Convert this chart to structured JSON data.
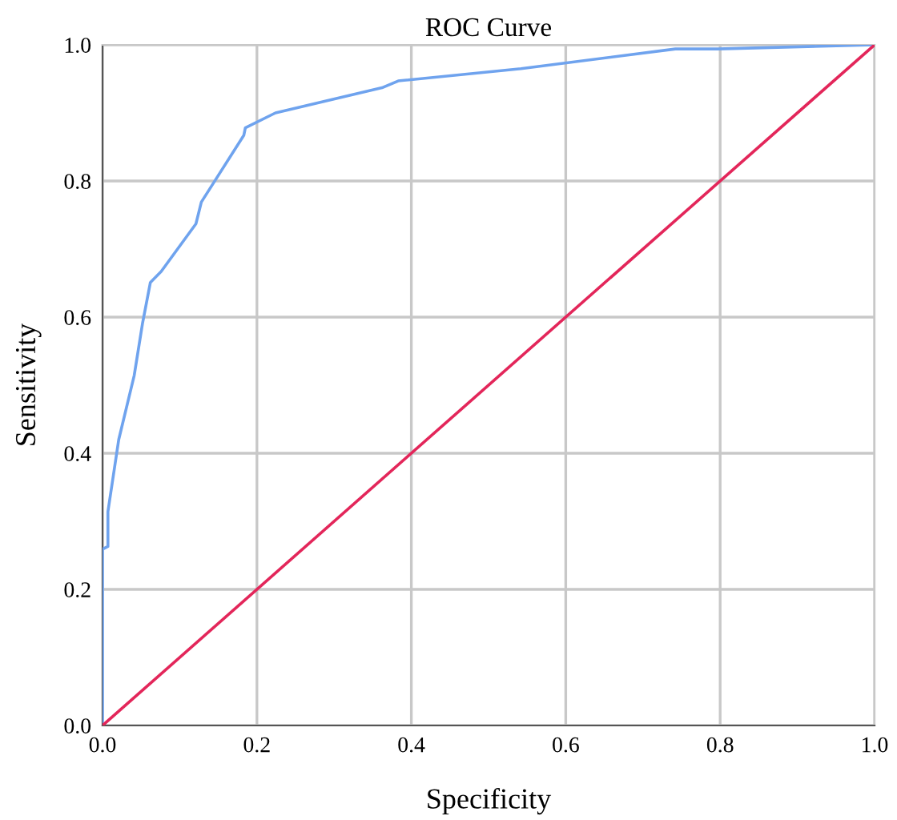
{
  "chart_data": {
    "type": "line",
    "title": "ROC Curve",
    "xlabel": "Specificity",
    "ylabel": "Sensitivity",
    "series": [
      {
        "color": "#6fa3ee",
        "x": [
          0,
          0,
          0.007,
          0.007,
          0.021,
          0.041,
          0.052,
          0.062,
          0.076,
          0.121,
          0.128,
          0.183,
          0.185,
          0.224,
          0.362,
          0.383,
          0.542,
          0.742,
          0.797,
          1.0
        ],
        "values": [
          0,
          0.259,
          0.263,
          0.314,
          0.42,
          0.514,
          0.592,
          0.651,
          0.667,
          0.737,
          0.769,
          0.867,
          0.878,
          0.9,
          0.937,
          0.947,
          0.965,
          0.994,
          0.994,
          1.0
        ]
      },
      {
        "color": "#e3265a",
        "x": [
          0,
          1.0
        ],
        "values": [
          0,
          1.0
        ]
      }
    ],
    "xlim": [
      0,
      1.0
    ],
    "ylim": [
      0,
      1.0
    ],
    "xticks": [
      {
        "value": 0,
        "label": "0.0"
      },
      0.2,
      0.4,
      0.6,
      0.8,
      {
        "value": 1,
        "label": "1.0"
      }
    ],
    "yticks": [
      {
        "value": 0,
        "label": "0.0"
      },
      0.2,
      0.4,
      0.6,
      0.8,
      {
        "value": 1,
        "label": "1.0"
      }
    ],
    "grid": true,
    "marker": "none",
    "line_style": "solid",
    "legend": false
  }
}
